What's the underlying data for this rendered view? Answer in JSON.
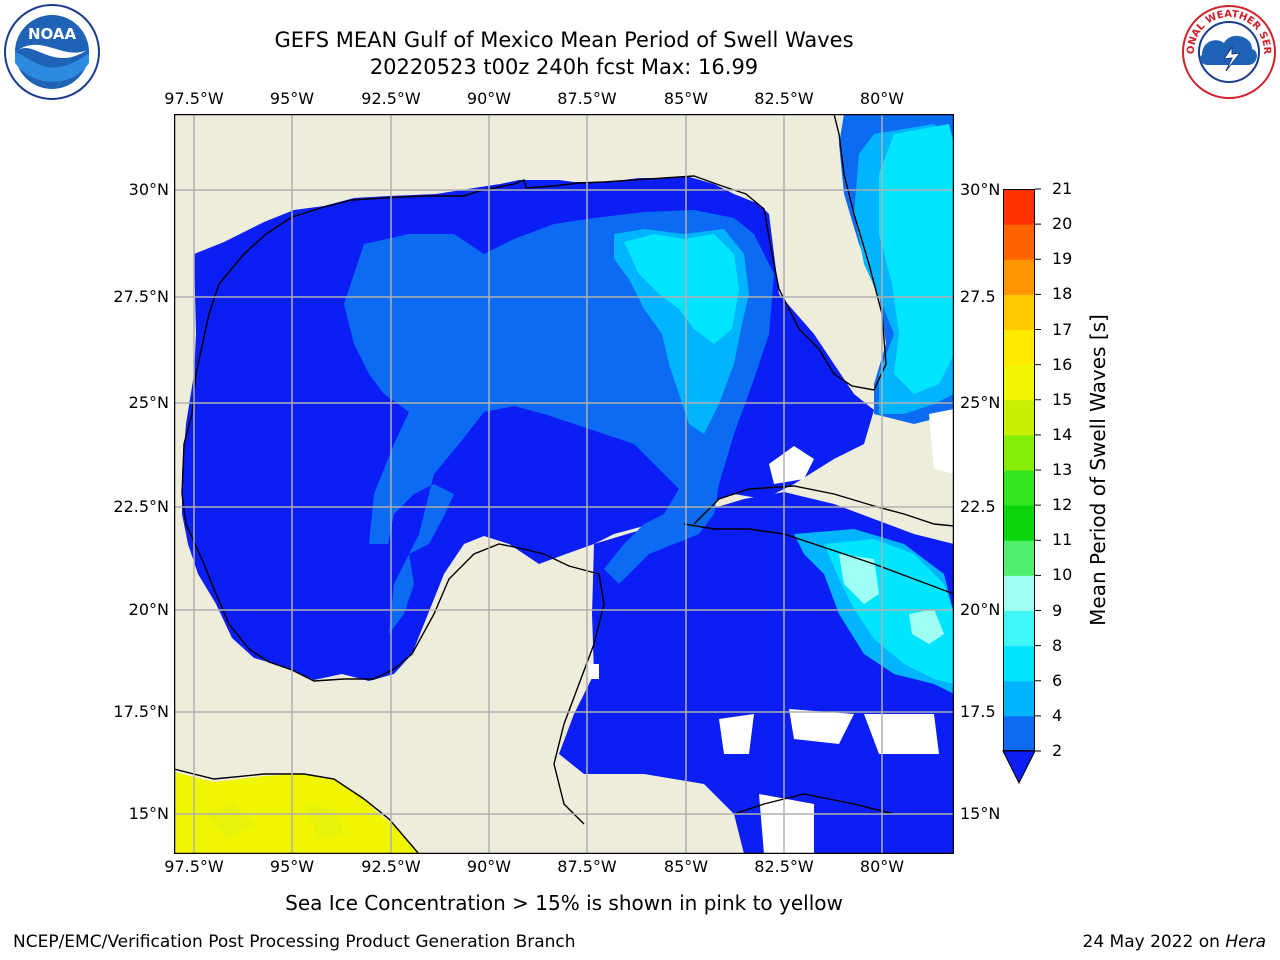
{
  "title": {
    "line1": "GEFS MEAN Gulf of Mexico Mean Period of Swell Waves",
    "line2": "20220523 t00z 240h fcst   Max: 16.99"
  },
  "map": {
    "lon_labels": [
      "97.5°W",
      "95°W",
      "92.5°W",
      "90°W",
      "87.5°W",
      "85°W",
      "82.5°W",
      "80°W"
    ],
    "lat_labels_left": [
      "30°N",
      "27.5°N",
      "25°N",
      "22.5°N",
      "20°N",
      "17.5°N",
      "15°N"
    ],
    "lat_labels_right": [
      "30°N",
      "27.5",
      "25°N",
      "22.5",
      "20°N",
      "17.5",
      "15°N"
    ],
    "land_color": "#eeeddc",
    "grid_color": "#b0b0b0"
  },
  "colorbar": {
    "title": "Mean Period of Swell Waves [s]",
    "ticks": [
      "2",
      "4",
      "6",
      "8",
      "9",
      "10",
      "11",
      "12",
      "13",
      "14",
      "15",
      "16",
      "17",
      "18",
      "19",
      "20",
      "21"
    ],
    "colors": [
      "#0b6cf3",
      "#00b4ff",
      "#00e5ff",
      "#3ff5f5",
      "#9ffff5",
      "#50f06e",
      "#0ad70a",
      "#32e61e",
      "#87ee0a",
      "#c8f000",
      "#f0f500",
      "#ffeb00",
      "#ffc800",
      "#ff9600",
      "#ff6400",
      "#ff3200",
      "#ff0000"
    ],
    "extend_color": "#0a1ef5"
  },
  "footer": {
    "note": "Sea Ice Concentration > 15% is shown in pink to yellow",
    "left": "NCEP/EMC/Verification Post Processing Product Generation Branch",
    "right_prefix": "24 May 2022 on ",
    "right_italic": "Hera"
  },
  "logos": {
    "noaa_text": "NOAA",
    "nws_text": "NATIONAL WEATHER SERVICE"
  }
}
